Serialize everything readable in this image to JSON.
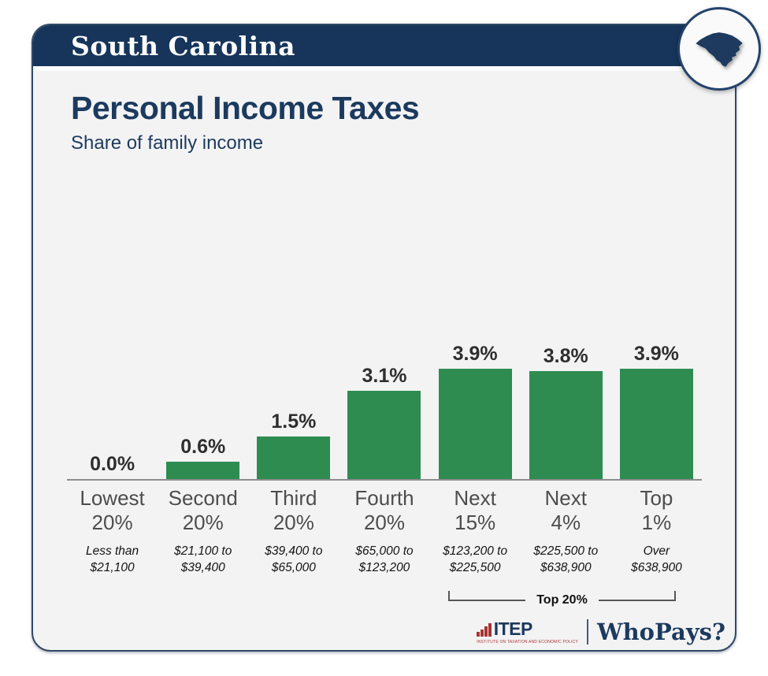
{
  "header": {
    "state_name": "South Carolina"
  },
  "badge": {
    "icon": "south-carolina-state-icon"
  },
  "title": "Personal Income Taxes",
  "subtitle": "Share of family income",
  "chart_data": {
    "type": "bar",
    "title": "Personal Income Taxes",
    "subtitle": "Share of family income",
    "unit": "percent of family income",
    "bar_color": "#2e8c51",
    "ylim": [
      0,
      4.5
    ],
    "grid": false,
    "legend": "none",
    "categories": [
      "Lowest 20%",
      "Second 20%",
      "Third 20%",
      "Fourth 20%",
      "Next 15%",
      "Next 4%",
      "Top 1%"
    ],
    "category_lines": [
      [
        "Lowest",
        "20%"
      ],
      [
        "Second",
        "20%"
      ],
      [
        "Third",
        "20%"
      ],
      [
        "Fourth",
        "20%"
      ],
      [
        "Next",
        "15%"
      ],
      [
        "Next",
        "4%"
      ],
      [
        "Top",
        "1%"
      ]
    ],
    "income_ranges": [
      [
        "Less than",
        "$21,100"
      ],
      [
        "$21,100 to",
        "$39,400"
      ],
      [
        "$39,400 to",
        "$65,000"
      ],
      [
        "$65,000 to",
        "$123,200"
      ],
      [
        "$123,200 to",
        "$225,500"
      ],
      [
        "$225,500 to",
        "$638,900"
      ],
      [
        "Over",
        "$638,900"
      ]
    ],
    "values": [
      0.0,
      0.6,
      1.5,
      3.1,
      3.9,
      3.8,
      3.9
    ],
    "value_labels": [
      "0.0%",
      "0.6%",
      "1.5%",
      "3.1%",
      "3.9%",
      "3.8%",
      "3.9%"
    ],
    "bracket": {
      "label": "Top 20%",
      "from_index": 4,
      "to_index": 6
    }
  },
  "footer": {
    "itep_acronym": "ITEP",
    "itep_tagline": "INSTITUTE ON TAXATION AND ECONOMIC POLICY",
    "brand": "WhoPays?"
  },
  "colors": {
    "header_navy": "#17355b",
    "title_navy": "#1c3a5e",
    "bar_green": "#2e8c51",
    "card_background": "#f3f3f4",
    "itep_red": "#a83434",
    "axis_gray": "#8c8c8c"
  }
}
